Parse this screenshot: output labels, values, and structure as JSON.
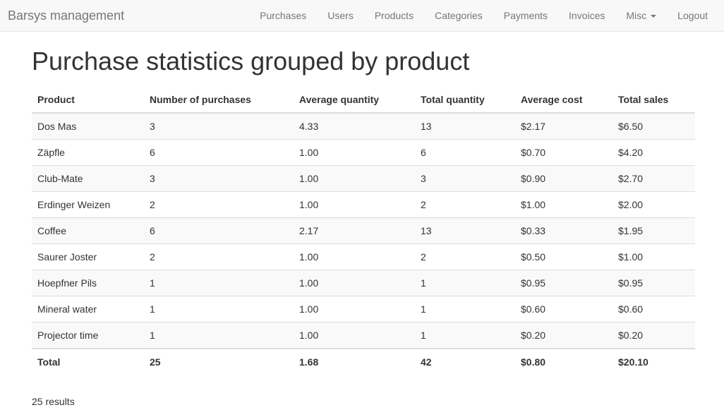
{
  "navbar": {
    "brand": "Barsys management",
    "items": [
      {
        "label": "Purchases"
      },
      {
        "label": "Users"
      },
      {
        "label": "Products"
      },
      {
        "label": "Categories"
      },
      {
        "label": "Payments"
      },
      {
        "label": "Invoices"
      },
      {
        "label": "Misc",
        "dropdown": true
      },
      {
        "label": "Logout"
      }
    ]
  },
  "page": {
    "title": "Purchase statistics grouped by product",
    "results_text": "25 results"
  },
  "table": {
    "columns": [
      "Product",
      "Number of purchases",
      "Average quantity",
      "Total quantity",
      "Average cost",
      "Total sales"
    ],
    "rows": [
      [
        "Dos Mas",
        "3",
        "4.33",
        "13",
        "$2.17",
        "$6.50"
      ],
      [
        "Zäpfle",
        "6",
        "1.00",
        "6",
        "$0.70",
        "$4.20"
      ],
      [
        "Club-Mate",
        "3",
        "1.00",
        "3",
        "$0.90",
        "$2.70"
      ],
      [
        "Erdinger Weizen",
        "2",
        "1.00",
        "2",
        "$1.00",
        "$2.00"
      ],
      [
        "Coffee",
        "6",
        "2.17",
        "13",
        "$0.33",
        "$1.95"
      ],
      [
        "Saurer Joster",
        "2",
        "1.00",
        "2",
        "$0.50",
        "$1.00"
      ],
      [
        "Hoepfner Pils",
        "1",
        "1.00",
        "1",
        "$0.95",
        "$0.95"
      ],
      [
        "Mineral water",
        "1",
        "1.00",
        "1",
        "$0.60",
        "$0.60"
      ],
      [
        "Projector time",
        "1",
        "1.00",
        "1",
        "$0.20",
        "$0.20"
      ]
    ],
    "total": [
      "Total",
      "25",
      "1.68",
      "42",
      "$0.80",
      "$20.10"
    ]
  }
}
